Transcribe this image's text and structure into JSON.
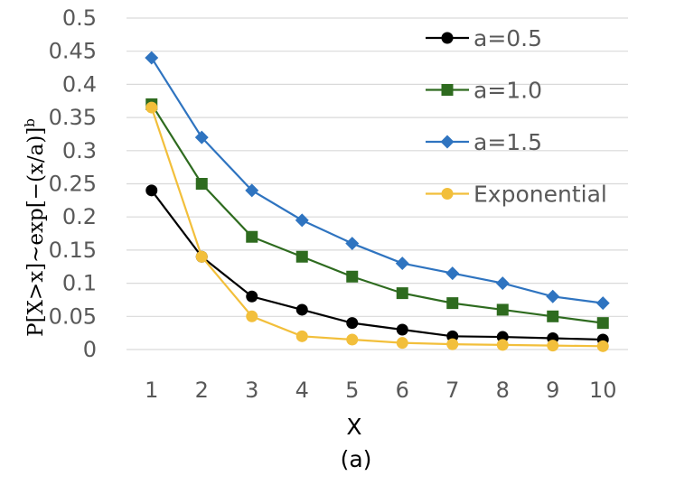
{
  "chart_data": {
    "type": "line",
    "xlabel": "X",
    "ylabel": "P[X>x]~exp[−(x/a)]ᵇ",
    "ylabel_main": "P[X>x]~exp[−(x/a)]",
    "ylabel_sup": "b",
    "caption": "(a)",
    "x": [
      1,
      2,
      3,
      4,
      5,
      6,
      7,
      8,
      9,
      10
    ],
    "xticks": [
      "1",
      "2",
      "3",
      "4",
      "5",
      "6",
      "7",
      "8",
      "9",
      "10"
    ],
    "ylim": [
      0,
      0.5
    ],
    "yticks": [
      0,
      0.05,
      0.1,
      0.15,
      0.2,
      0.25,
      0.3,
      0.35,
      0.4,
      0.45,
      0.5
    ],
    "ytick_labels": [
      "0",
      "0.05",
      "0.1",
      "0.15",
      "0.2",
      "0.25",
      "0.3",
      "0.35",
      "0.4",
      "0.45",
      "0.5"
    ],
    "grid": "horizontal",
    "legend_position": "top-right",
    "series": [
      {
        "name": "a=0.5",
        "color": "#000000",
        "marker": "circle",
        "values": [
          0.24,
          0.14,
          0.08,
          0.06,
          0.04,
          0.03,
          0.02,
          0.019,
          0.017,
          0.015
        ]
      },
      {
        "name": "a=1.0",
        "color": "#2e6b1f",
        "marker": "square",
        "values": [
          0.37,
          0.25,
          0.17,
          0.14,
          0.11,
          0.085,
          0.07,
          0.06,
          0.05,
          0.04
        ]
      },
      {
        "name": "a=1.5",
        "color": "#2f74c0",
        "marker": "diamond",
        "values": [
          0.44,
          0.32,
          0.24,
          0.195,
          0.16,
          0.13,
          0.115,
          0.1,
          0.08,
          0.07
        ]
      },
      {
        "name": "Exponential",
        "color": "#f2bf3b",
        "marker": "circle",
        "values": [
          0.365,
          0.14,
          0.05,
          0.02,
          0.015,
          0.01,
          0.008,
          0.007,
          0.006,
          0.005
        ]
      }
    ]
  }
}
